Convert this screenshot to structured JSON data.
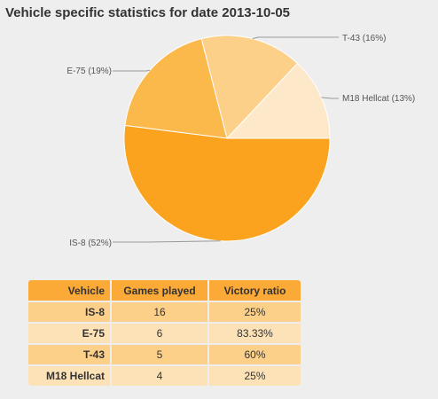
{
  "title": "Vehicle specific statistics for date 2013-10-05",
  "chart_data": {
    "type": "pie",
    "title": "Vehicle specific statistics for date 2013-10-05",
    "slices": [
      {
        "label": "M18 Hellcat (13%)",
        "value": 13,
        "color": "#fde9c9"
      },
      {
        "label": "T-43 (16%)",
        "value": 16,
        "color": "#fdd08a"
      },
      {
        "label": "E-75 (19%)",
        "value": 19,
        "color": "#fbb84b"
      },
      {
        "label": "IS-8 (52%)",
        "value": 52,
        "color": "#fba21e"
      }
    ]
  },
  "table": {
    "headers": [
      "Vehicle",
      "Games played",
      "Victory ratio"
    ],
    "rows": [
      [
        "IS-8",
        "16",
        "25%"
      ],
      [
        "E-75",
        "6",
        "83.33%"
      ],
      [
        "T-43",
        "5",
        "60%"
      ],
      [
        "M18 Hellcat",
        "4",
        "25%"
      ]
    ]
  }
}
